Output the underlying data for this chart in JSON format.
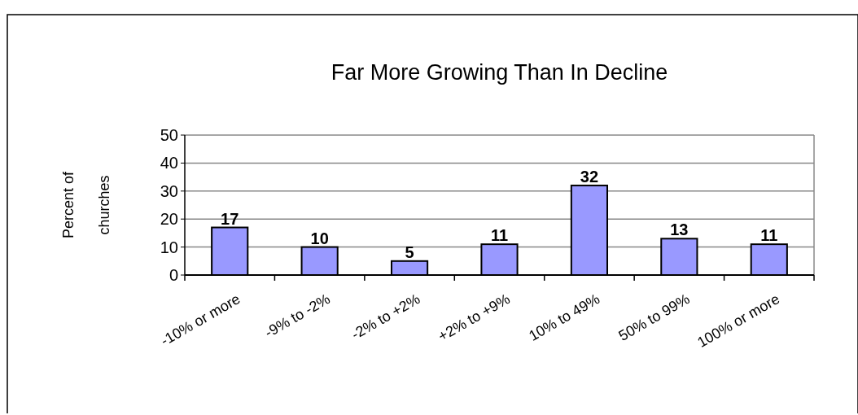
{
  "chart_data": {
    "type": "bar",
    "title": "Far More Growing Than In Decline",
    "ylabel": "Percent of\nchurches",
    "categories": [
      "-10% or more",
      "-9% to -2%",
      "-2% to +2%",
      "+2% to +9%",
      "10% to 49%",
      "50% to 99%",
      "100% or more"
    ],
    "values": [
      17,
      10,
      5,
      11,
      32,
      13,
      11
    ],
    "color": "#9999ff",
    "ylim": [
      0,
      50
    ],
    "yticks": [
      0,
      10,
      20,
      30,
      40,
      50
    ],
    "grid": "y",
    "data_labels": true
  }
}
